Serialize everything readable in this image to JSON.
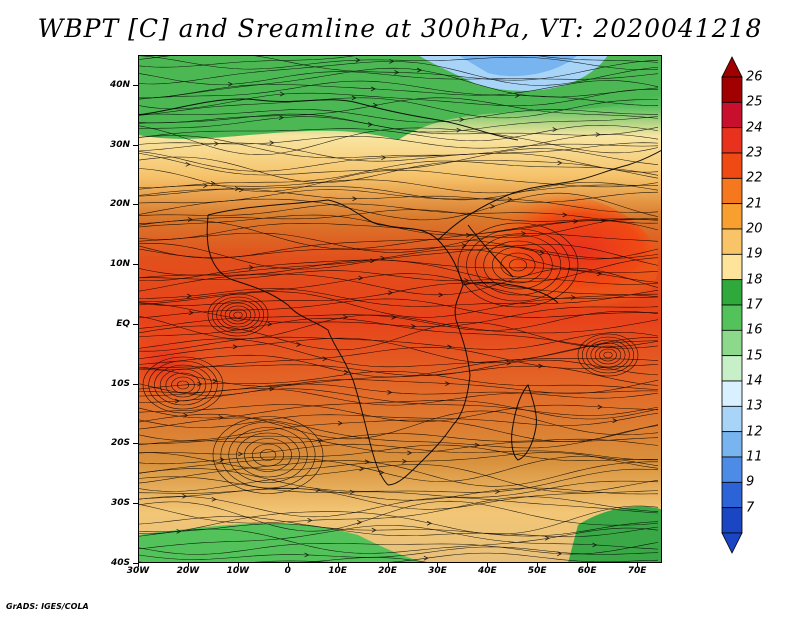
{
  "title": "WBPT [C] and Sreamline at 300hPa, VT: 2020041218",
  "footer": "GrADS: IGES/COLA",
  "map": {
    "lat_labels": [
      "40N",
      "30N",
      "20N",
      "10N",
      "EQ",
      "10S",
      "20S",
      "30S",
      "40S"
    ],
    "lat_values": [
      40,
      30,
      20,
      10,
      0,
      -10,
      -20,
      -30,
      -40
    ],
    "lon_labels": [
      "30W",
      "20W",
      "10W",
      "0",
      "10E",
      "20E",
      "30E",
      "40E",
      "50E",
      "60E",
      "70E"
    ],
    "lon_values": [
      -30,
      -20,
      -10,
      0,
      10,
      20,
      30,
      40,
      50,
      60,
      70
    ],
    "lon_range": [
      -30,
      75
    ],
    "lat_range": [
      -40,
      45
    ],
    "field": "wet-bulb potential temperature",
    "units": "C",
    "level": "300hPa",
    "valid_time": "2020041218"
  },
  "colorbar": {
    "levels": [
      "26",
      "25",
      "24",
      "23",
      "22",
      "21",
      "20",
      "19",
      "18",
      "17",
      "16",
      "15",
      "14",
      "13",
      "12",
      "11",
      "9",
      "7"
    ],
    "colors": [
      "#a00000",
      "#c8102e",
      "#e8321e",
      "#f04a14",
      "#f5781e",
      "#f7a030",
      "#f9c468",
      "#fde49a",
      "#2fa83c",
      "#54c25a",
      "#8cd98c",
      "#c8f0c8",
      "#d8f0ff",
      "#a8d4f8",
      "#78b4f0",
      "#4c8ce6",
      "#2c64d8",
      "#1a46c4"
    ]
  }
}
